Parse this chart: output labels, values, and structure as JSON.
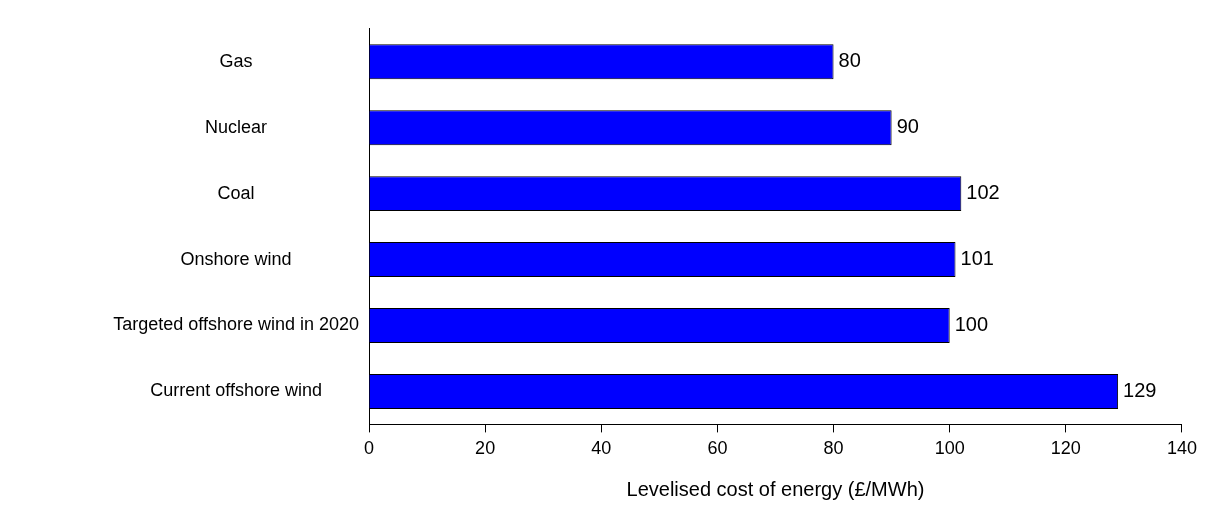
{
  "chart_data": {
    "type": "bar",
    "orientation": "horizontal",
    "xlabel": "Levelised cost of energy (£/MWh)",
    "categories": [
      "Gas",
      "Nuclear",
      "Coal",
      "Onshore wind",
      "Targeted offshore wind in 2020",
      "Current offshore wind"
    ],
    "values": [
      80,
      90,
      102,
      101,
      100,
      129
    ],
    "color": "#0000ff",
    "xlim": [
      0,
      140
    ],
    "xticks": [
      0,
      20,
      40,
      60,
      80,
      100,
      120,
      140
    ],
    "grid": false,
    "legend": false,
    "data_labels": true
  }
}
